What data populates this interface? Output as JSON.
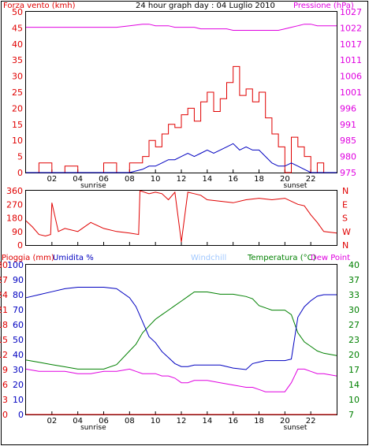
{
  "header": {
    "left_label": "Forza vento (kmh)",
    "title": "24 hour graph day : 04 Luglio 2010",
    "right_label": "Pressione (hPa)"
  },
  "colors": {
    "frame": "#000000",
    "wind": "#e00000",
    "wind_avg": "#0000c0",
    "pressure": "#e000e0",
    "direction": "#e00000",
    "humidity": "#0000c0",
    "temperature": "#008000",
    "dew_point": "#e000e0",
    "rain": "#e00000",
    "windchill": "#a0c8ff"
  },
  "x_ticks": [
    "02",
    "04",
    "06",
    "08",
    "10",
    "12",
    "14",
    "16",
    "18",
    "20",
    "22"
  ],
  "sun_labels": {
    "sunrise": "sunrise",
    "sunset": "sunset"
  },
  "chart_data": [
    {
      "type": "line",
      "title": "24 hour graph day : 04 Luglio 2010",
      "ylabel": "Forza vento (kmh)",
      "y2label": "Pressione (hPa)",
      "ylim": [
        0,
        50
      ],
      "y2lim": [
        975,
        1027
      ],
      "y_ticks": [
        "0",
        "5",
        "10",
        "15",
        "20",
        "25",
        "30",
        "35",
        "40",
        "45",
        "50"
      ],
      "y2_ticks": [
        "975",
        "980",
        "985",
        "991",
        "996",
        "1001",
        "1006",
        "1011",
        "1017",
        "1022",
        "1027"
      ],
      "x": [
        0,
        1,
        2,
        3,
        4,
        5,
        6,
        7,
        8,
        9,
        9.5,
        10,
        10.5,
        11,
        11.5,
        12,
        12.5,
        13,
        13.5,
        14,
        14.5,
        15,
        15.5,
        16,
        16.5,
        17,
        17.5,
        18,
        18.5,
        19,
        19.5,
        20,
        20.5,
        21,
        21.5,
        22,
        22.5,
        23,
        24
      ],
      "series": [
        {
          "name": "Forza vento",
          "values": [
            0,
            3,
            0,
            2,
            0,
            0,
            3,
            0,
            3,
            5,
            10,
            8,
            12,
            15,
            14,
            18,
            20,
            16,
            22,
            25,
            19,
            23,
            28,
            33,
            24,
            26,
            22,
            25,
            17,
            12,
            8,
            0,
            11,
            8,
            5,
            0,
            3,
            0,
            0
          ]
        },
        {
          "name": "media",
          "values": [
            0,
            0,
            0,
            0,
            0,
            0,
            0,
            0,
            0,
            1,
            2,
            2,
            3,
            4,
            4,
            5,
            6,
            5,
            6,
            7,
            6,
            7,
            8,
            9,
            7,
            8,
            7,
            7,
            5,
            3,
            2,
            2,
            3,
            2,
            1,
            0,
            0,
            0,
            0
          ]
        },
        {
          "name": "Pressione",
          "values": [
            1022,
            1022,
            1022,
            1022,
            1022,
            1022,
            1022,
            1022,
            1022.5,
            1023,
            1023,
            1022.5,
            1022.5,
            1022.5,
            1022,
            1022,
            1022,
            1022,
            1021.5,
            1021.5,
            1021.5,
            1021.5,
            1021.5,
            1021,
            1021,
            1021,
            1021,
            1021,
            1021,
            1021,
            1021,
            1021.5,
            1022,
            1022.5,
            1023,
            1023,
            1022.5,
            1022.5,
            1022.5
          ]
        }
      ]
    },
    {
      "type": "line",
      "ylim": [
        0,
        360
      ],
      "y_ticks": [
        "0",
        "90",
        "180",
        "270",
        "360"
      ],
      "y2_ticks": [
        "N",
        "W",
        "S",
        "E",
        "N"
      ],
      "x": [
        0,
        0.5,
        1,
        1.5,
        1.9,
        2,
        2.5,
        3,
        4,
        5,
        6,
        7,
        8,
        8.7,
        8.8,
        9.5,
        10,
        10.5,
        11,
        11.5,
        12,
        12.5,
        13,
        13.5,
        14,
        15,
        16,
        17,
        18,
        19,
        20,
        20.5,
        21,
        21.5,
        22,
        22.5,
        23,
        24
      ],
      "series": [
        {
          "name": "Direzione vento",
          "values": [
            160,
            120,
            70,
            60,
            70,
            280,
            90,
            110,
            90,
            150,
            110,
            90,
            80,
            70,
            360,
            340,
            350,
            340,
            300,
            350,
            20,
            350,
            340,
            330,
            300,
            290,
            280,
            300,
            310,
            300,
            310,
            290,
            270,
            260,
            200,
            150,
            90,
            80
          ]
        }
      ]
    },
    {
      "type": "line",
      "legend": [
        "Pioggia (mm)",
        "Umidita %",
        "Windchill",
        "Temperatura (°C)",
        "Dew Point"
      ],
      "ylim_rain": [
        0,
        30
      ],
      "ylim_humidity": [
        0,
        100
      ],
      "ylim_temperature": [
        7,
        40
      ],
      "y_ticks_rain": [
        "0",
        "3",
        "6",
        "9",
        "12",
        "15",
        "18",
        "21",
        "24",
        "27",
        "30"
      ],
      "y_ticks_humidity": [
        "0",
        "10",
        "20",
        "30",
        "40",
        "50",
        "60",
        "70",
        "80",
        "90",
        "100"
      ],
      "y2_ticks": [
        "7",
        "10",
        "14",
        "17",
        "20",
        "23",
        "27",
        "30",
        "33",
        "37",
        "40"
      ],
      "x": [
        0,
        1,
        2,
        3,
        4,
        5,
        6,
        7,
        8,
        8.5,
        9,
        9.5,
        10,
        10.5,
        11,
        11.5,
        12,
        12.5,
        13,
        13.5,
        14,
        15,
        16,
        17,
        17.5,
        18,
        18.5,
        19,
        20,
        20.5,
        21,
        21.5,
        22,
        22.5,
        23,
        24
      ],
      "series": [
        {
          "name": "Pioggia (mm)",
          "values": [
            0,
            0,
            0,
            0,
            0,
            0,
            0,
            0,
            0,
            0,
            0,
            0,
            0,
            0,
            0,
            0,
            0,
            0,
            0,
            0,
            0,
            0,
            0,
            0,
            0,
            0,
            0,
            0,
            0,
            0,
            0,
            0,
            0,
            0,
            0,
            0
          ]
        },
        {
          "name": "Umidita %",
          "values": [
            78,
            80,
            82,
            84,
            85,
            85,
            85,
            84,
            78,
            72,
            62,
            52,
            48,
            42,
            38,
            34,
            32,
            32,
            33,
            33,
            33,
            33,
            31,
            30,
            34,
            35,
            36,
            36,
            36,
            37,
            65,
            72,
            76,
            79,
            80,
            80
          ]
        },
        {
          "name": "Temperatura (°C)",
          "values": [
            19,
            18.5,
            18,
            17.5,
            17,
            17,
            17,
            18,
            21,
            22.5,
            25,
            26.5,
            28,
            29,
            30,
            31,
            32,
            33,
            34,
            34,
            34,
            33.5,
            33.5,
            33,
            32.5,
            31,
            30.5,
            30,
            30,
            29,
            25,
            23,
            22,
            21,
            20.5,
            20
          ]
        },
        {
          "name": "Dew Point",
          "values": [
            17,
            16.5,
            16.5,
            16.5,
            16,
            16,
            16.5,
            16.5,
            17,
            16.5,
            16,
            16,
            16,
            15.5,
            15.5,
            15,
            14,
            14,
            14.5,
            14.5,
            14.5,
            14,
            13.5,
            13,
            13,
            12.5,
            12,
            12,
            12,
            14,
            17,
            17,
            16.5,
            16,
            16,
            15.5
          ]
        }
      ]
    }
  ]
}
